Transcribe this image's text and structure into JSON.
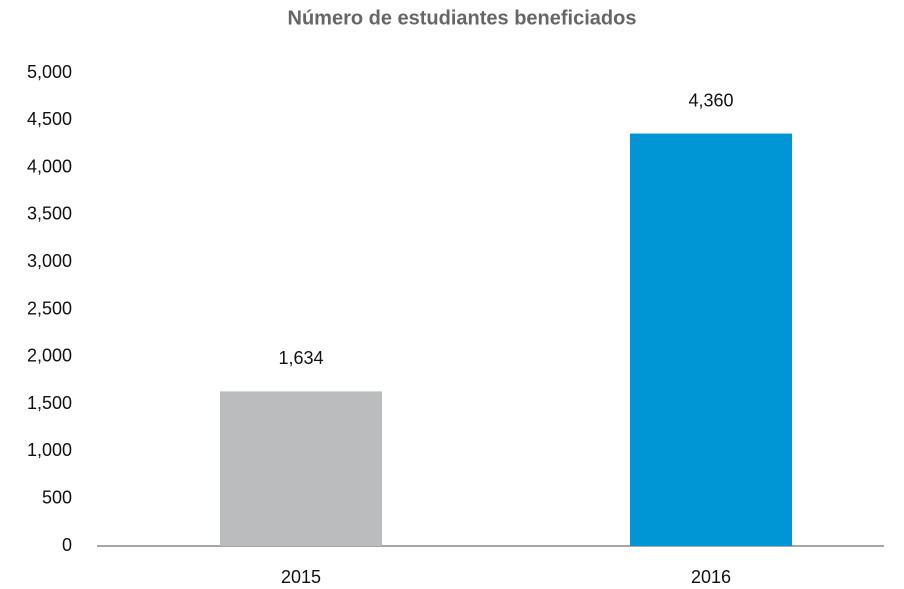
{
  "chart_data": {
    "type": "bar",
    "title": "Número de estudiantes beneficiados",
    "categories": [
      "2015",
      "2016"
    ],
    "values": [
      1634,
      4360
    ],
    "value_labels": [
      "1,634",
      "4,360"
    ],
    "colors": [
      "#bbbcbe",
      "#0096d6"
    ],
    "ylim": [
      0,
      5000
    ],
    "yticks": [
      0,
      500,
      {
        "value": 1000,
        "label": "1,000"
      },
      {
        "value": 1500,
        "label": "1,500"
      },
      {
        "value": 2000,
        "label": "2,000"
      },
      {
        "value": 2500,
        "label": "2,500"
      },
      {
        "value": 3000,
        "label": "3,000"
      },
      {
        "value": 3500,
        "label": "3,500"
      },
      {
        "value": 4000,
        "label": "4,000"
      },
      {
        "value": 4500,
        "label": "4,500"
      },
      {
        "value": 5000,
        "label": "5,000"
      }
    ],
    "grid": false
  }
}
